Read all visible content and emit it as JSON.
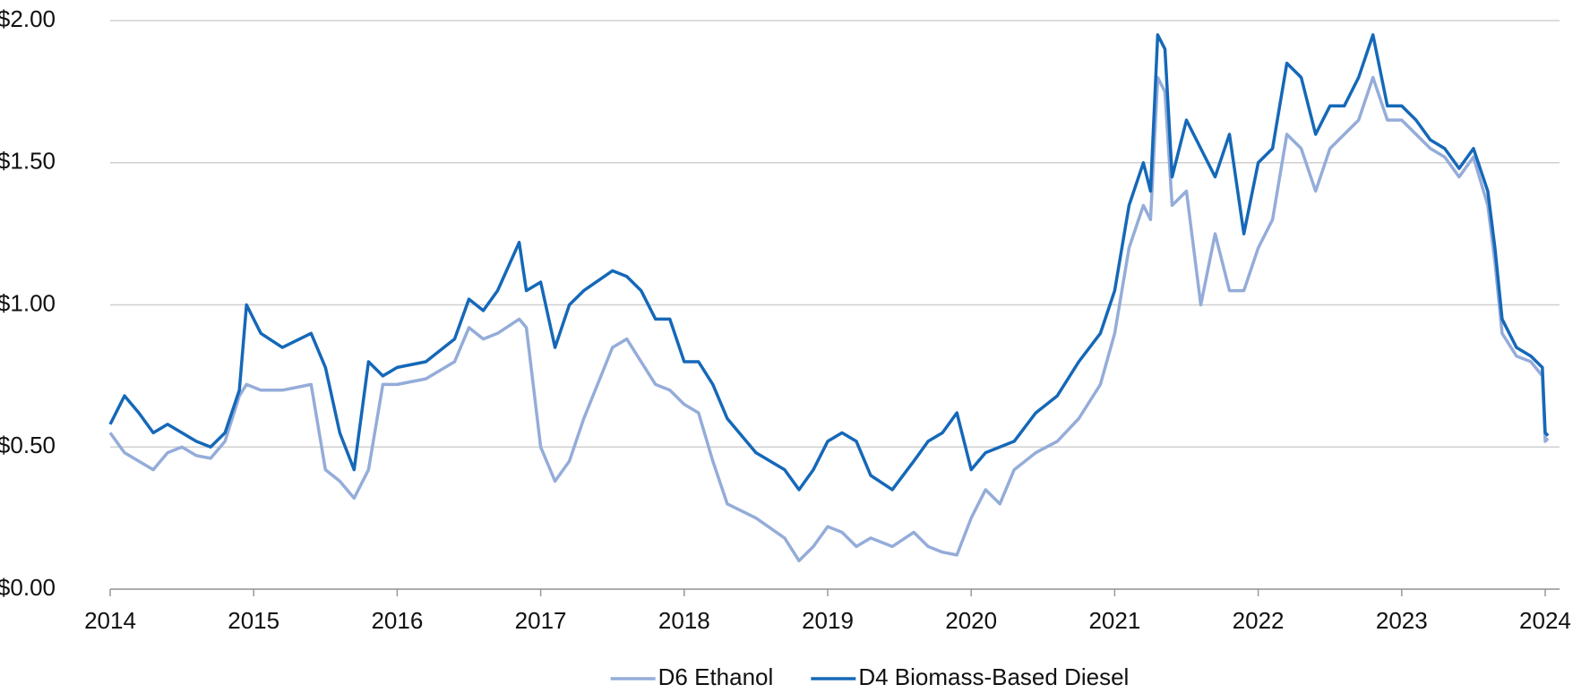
{
  "chart_data": {
    "type": "line",
    "x": [
      2014.0,
      2014.1,
      2014.2,
      2014.3,
      2014.4,
      2014.5,
      2014.6,
      2014.7,
      2014.8,
      2014.9,
      2014.95,
      2015.05,
      2015.2,
      2015.4,
      2015.5,
      2015.6,
      2015.7,
      2015.8,
      2015.9,
      2016.0,
      2016.2,
      2016.4,
      2016.5,
      2016.6,
      2016.7,
      2016.85,
      2016.9,
      2017.0,
      2017.1,
      2017.2,
      2017.3,
      2017.5,
      2017.6,
      2017.7,
      2017.8,
      2017.9,
      2018.0,
      2018.1,
      2018.2,
      2018.3,
      2018.5,
      2018.7,
      2018.8,
      2018.9,
      2019.0,
      2019.1,
      2019.2,
      2019.3,
      2019.45,
      2019.6,
      2019.7,
      2019.8,
      2019.9,
      2020.0,
      2020.1,
      2020.2,
      2020.3,
      2020.45,
      2020.6,
      2020.75,
      2020.9,
      2021.0,
      2021.1,
      2021.2,
      2021.25,
      2021.3,
      2021.35,
      2021.4,
      2021.5,
      2021.6,
      2021.7,
      2021.8,
      2021.9,
      2022.0,
      2022.1,
      2022.2,
      2022.3,
      2022.4,
      2022.5,
      2022.6,
      2022.7,
      2022.8,
      2022.9,
      2023.0,
      2023.1,
      2023.2,
      2023.3,
      2023.4,
      2023.5,
      2023.6,
      2023.65,
      2023.7,
      2023.8,
      2023.9,
      2023.98,
      2024.0,
      2024.02
    ],
    "series": [
      {
        "name": "D6 Ethanol",
        "color": "#94acd9",
        "values": [
          0.55,
          0.48,
          0.45,
          0.42,
          0.48,
          0.5,
          0.47,
          0.46,
          0.52,
          0.68,
          0.72,
          0.7,
          0.7,
          0.72,
          0.42,
          0.38,
          0.32,
          0.42,
          0.72,
          0.72,
          0.74,
          0.8,
          0.92,
          0.88,
          0.9,
          0.95,
          0.92,
          0.5,
          0.38,
          0.45,
          0.6,
          0.85,
          0.88,
          0.8,
          0.72,
          0.7,
          0.65,
          0.62,
          0.45,
          0.3,
          0.25,
          0.18,
          0.1,
          0.15,
          0.22,
          0.2,
          0.15,
          0.18,
          0.15,
          0.2,
          0.15,
          0.13,
          0.12,
          0.25,
          0.35,
          0.3,
          0.42,
          0.48,
          0.52,
          0.6,
          0.72,
          0.9,
          1.2,
          1.35,
          1.3,
          1.8,
          1.75,
          1.35,
          1.4,
          1.0,
          1.25,
          1.05,
          1.05,
          1.2,
          1.3,
          1.6,
          1.55,
          1.4,
          1.55,
          1.6,
          1.65,
          1.8,
          1.65,
          1.65,
          1.6,
          1.55,
          1.52,
          1.45,
          1.52,
          1.35,
          1.15,
          0.9,
          0.82,
          0.8,
          0.75,
          0.52,
          0.53
        ]
      },
      {
        "name": "D4 Biomass-Based Diesel",
        "color": "#1568b8",
        "values": [
          0.58,
          0.68,
          0.62,
          0.55,
          0.58,
          0.55,
          0.52,
          0.5,
          0.55,
          0.7,
          1.0,
          0.9,
          0.85,
          0.9,
          0.78,
          0.55,
          0.42,
          0.8,
          0.75,
          0.78,
          0.8,
          0.88,
          1.02,
          0.98,
          1.05,
          1.22,
          1.05,
          1.08,
          0.85,
          1.0,
          1.05,
          1.12,
          1.1,
          1.05,
          0.95,
          0.95,
          0.8,
          0.8,
          0.72,
          0.6,
          0.48,
          0.42,
          0.35,
          0.42,
          0.52,
          0.55,
          0.52,
          0.4,
          0.35,
          0.45,
          0.52,
          0.55,
          0.62,
          0.42,
          0.48,
          0.5,
          0.52,
          0.62,
          0.68,
          0.8,
          0.9,
          1.05,
          1.35,
          1.5,
          1.4,
          1.95,
          1.9,
          1.45,
          1.65,
          1.55,
          1.45,
          1.6,
          1.25,
          1.5,
          1.55,
          1.85,
          1.8,
          1.6,
          1.7,
          1.7,
          1.8,
          1.95,
          1.7,
          1.7,
          1.65,
          1.58,
          1.55,
          1.48,
          1.55,
          1.4,
          1.2,
          0.95,
          0.85,
          0.82,
          0.78,
          0.55,
          0.54
        ]
      }
    ],
    "xlim": [
      2014,
      2024.1
    ],
    "xticks": [
      2014,
      2015,
      2016,
      2017,
      2018,
      2019,
      2020,
      2021,
      2022,
      2023,
      2024
    ],
    "ylim": [
      0,
      2
    ],
    "yticks": [
      {
        "value": 0,
        "label": "$0.00"
      },
      {
        "value": 0.5,
        "label": "$0.50"
      },
      {
        "value": 1,
        "label": "$1.00"
      },
      {
        "value": 1.5,
        "label": "$1.50"
      },
      {
        "value": 2,
        "label": "$2.00"
      }
    ],
    "grid": true,
    "legend": "bottom"
  }
}
